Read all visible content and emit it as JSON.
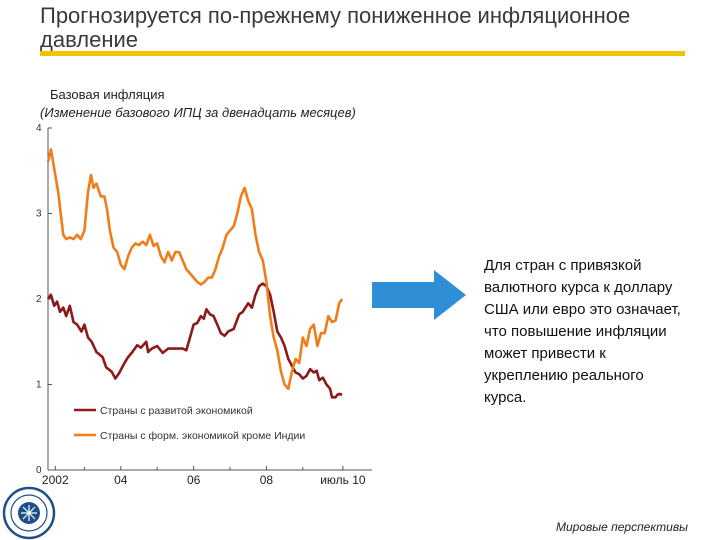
{
  "page": {
    "title": "Прогнозируется по-прежнему пониженное инфляционное давление",
    "note": "Для стран с привязкой валютного курса к доллару США или евро это означает, что повышение инфляции может привести к укреплению реального курса.",
    "source": "Мировые перспективы"
  },
  "colors": {
    "accent": "#f0c400",
    "advanced": "#8b1a1a",
    "emerging": "#f07d1a",
    "arrow": "#2e8fd6"
  },
  "chart_data": {
    "type": "line",
    "title": "Базовая инфляция",
    "subtitle": "(Изменение базового ИПЦ за двенадцать месяцев)",
    "ylim": [
      0,
      4
    ],
    "yticks": [
      "0",
      "1",
      "2",
      "3",
      "4"
    ],
    "xlim": [
      2002.0,
      2010.9
    ],
    "xticks": [
      {
        "label": "2002",
        "x": 2002.2
      },
      {
        "label": "04",
        "x": 2004.0
      },
      {
        "label": "06",
        "x": 2006.0
      },
      {
        "label": "08",
        "x": 2008.0
      },
      {
        "label": "июль 10",
        "x": 2010.1
      }
    ],
    "legend_position": "bottom-left",
    "series": [
      {
        "name": "Страны с развитой экономикой",
        "points": [
          [
            2002.0,
            2.0
          ],
          [
            2002.08,
            2.05
          ],
          [
            2002.17,
            1.92
          ],
          [
            2002.25,
            1.97
          ],
          [
            2002.33,
            1.85
          ],
          [
            2002.42,
            1.9
          ],
          [
            2002.5,
            1.8
          ],
          [
            2002.6,
            1.92
          ],
          [
            2002.7,
            1.73
          ],
          [
            2002.8,
            1.7
          ],
          [
            2002.92,
            1.62
          ],
          [
            2003.0,
            1.7
          ],
          [
            2003.1,
            1.55
          ],
          [
            2003.2,
            1.5
          ],
          [
            2003.33,
            1.38
          ],
          [
            2003.5,
            1.32
          ],
          [
            2003.6,
            1.2
          ],
          [
            2003.75,
            1.15
          ],
          [
            2003.85,
            1.07
          ],
          [
            2003.95,
            1.13
          ],
          [
            2004.1,
            1.25
          ],
          [
            2004.2,
            1.32
          ],
          [
            2004.3,
            1.37
          ],
          [
            2004.45,
            1.46
          ],
          [
            2004.55,
            1.43
          ],
          [
            2004.7,
            1.5
          ],
          [
            2004.75,
            1.38
          ],
          [
            2004.85,
            1.42
          ],
          [
            2005.0,
            1.45
          ],
          [
            2005.15,
            1.37
          ],
          [
            2005.3,
            1.42
          ],
          [
            2005.5,
            1.42
          ],
          [
            2005.7,
            1.42
          ],
          [
            2005.8,
            1.4
          ],
          [
            2005.9,
            1.55
          ],
          [
            2006.0,
            1.7
          ],
          [
            2006.1,
            1.72
          ],
          [
            2006.2,
            1.8
          ],
          [
            2006.28,
            1.77
          ],
          [
            2006.35,
            1.88
          ],
          [
            2006.45,
            1.82
          ],
          [
            2006.55,
            1.8
          ],
          [
            2006.65,
            1.7
          ],
          [
            2006.75,
            1.6
          ],
          [
            2006.85,
            1.57
          ],
          [
            2006.95,
            1.62
          ],
          [
            2007.1,
            1.65
          ],
          [
            2007.25,
            1.82
          ],
          [
            2007.35,
            1.85
          ],
          [
            2007.5,
            1.95
          ],
          [
            2007.6,
            1.9
          ],
          [
            2007.7,
            2.05
          ],
          [
            2007.8,
            2.15
          ],
          [
            2007.9,
            2.18
          ],
          [
            2008.0,
            2.15
          ],
          [
            2008.1,
            2.05
          ],
          [
            2008.2,
            1.85
          ],
          [
            2008.3,
            1.62
          ],
          [
            2008.4,
            1.55
          ],
          [
            2008.5,
            1.45
          ],
          [
            2008.6,
            1.3
          ],
          [
            2008.7,
            1.22
          ],
          [
            2008.8,
            1.14
          ],
          [
            2008.9,
            1.12
          ],
          [
            2009.0,
            1.07
          ],
          [
            2009.1,
            1.1
          ],
          [
            2009.2,
            1.18
          ],
          [
            2009.3,
            1.14
          ],
          [
            2009.38,
            1.16
          ],
          [
            2009.45,
            1.05
          ],
          [
            2009.55,
            1.08
          ],
          [
            2009.65,
            1.0
          ],
          [
            2009.75,
            0.95
          ],
          [
            2009.8,
            0.85
          ],
          [
            2009.9,
            0.85
          ],
          [
            2009.95,
            0.88
          ],
          [
            2010.0,
            0.89
          ],
          [
            2010.08,
            0.88
          ]
        ]
      },
      {
        "name": "Страны с форм. экономикой кроме Индии",
        "points": [
          [
            2002.0,
            3.6
          ],
          [
            2002.08,
            3.75
          ],
          [
            2002.12,
            3.65
          ],
          [
            2002.2,
            3.45
          ],
          [
            2002.28,
            3.25
          ],
          [
            2002.35,
            3.0
          ],
          [
            2002.42,
            2.75
          ],
          [
            2002.5,
            2.7
          ],
          [
            2002.6,
            2.72
          ],
          [
            2002.7,
            2.7
          ],
          [
            2002.8,
            2.75
          ],
          [
            2002.9,
            2.7
          ],
          [
            2003.0,
            2.8
          ],
          [
            2003.1,
            3.25
          ],
          [
            2003.18,
            3.45
          ],
          [
            2003.25,
            3.3
          ],
          [
            2003.33,
            3.35
          ],
          [
            2003.45,
            3.2
          ],
          [
            2003.55,
            3.2
          ],
          [
            2003.62,
            3.05
          ],
          [
            2003.7,
            2.8
          ],
          [
            2003.8,
            2.6
          ],
          [
            2003.9,
            2.55
          ],
          [
            2004.0,
            2.4
          ],
          [
            2004.1,
            2.35
          ],
          [
            2004.2,
            2.5
          ],
          [
            2004.3,
            2.6
          ],
          [
            2004.4,
            2.65
          ],
          [
            2004.5,
            2.63
          ],
          [
            2004.6,
            2.67
          ],
          [
            2004.7,
            2.63
          ],
          [
            2004.8,
            2.75
          ],
          [
            2004.9,
            2.62
          ],
          [
            2005.0,
            2.65
          ],
          [
            2005.1,
            2.5
          ],
          [
            2005.2,
            2.43
          ],
          [
            2005.3,
            2.55
          ],
          [
            2005.4,
            2.45
          ],
          [
            2005.5,
            2.55
          ],
          [
            2005.6,
            2.55
          ],
          [
            2005.7,
            2.45
          ],
          [
            2005.8,
            2.35
          ],
          [
            2005.9,
            2.3
          ],
          [
            2006.0,
            2.25
          ],
          [
            2006.1,
            2.2
          ],
          [
            2006.2,
            2.17
          ],
          [
            2006.3,
            2.2
          ],
          [
            2006.4,
            2.25
          ],
          [
            2006.5,
            2.25
          ],
          [
            2006.6,
            2.35
          ],
          [
            2006.7,
            2.5
          ],
          [
            2006.8,
            2.6
          ],
          [
            2006.9,
            2.75
          ],
          [
            2007.0,
            2.8
          ],
          [
            2007.1,
            2.85
          ],
          [
            2007.2,
            3.0
          ],
          [
            2007.3,
            3.2
          ],
          [
            2007.4,
            3.3
          ],
          [
            2007.5,
            3.15
          ],
          [
            2007.6,
            3.05
          ],
          [
            2007.7,
            2.75
          ],
          [
            2007.8,
            2.55
          ],
          [
            2007.9,
            2.45
          ],
          [
            2008.0,
            2.2
          ],
          [
            2008.1,
            1.8
          ],
          [
            2008.2,
            1.55
          ],
          [
            2008.3,
            1.4
          ],
          [
            2008.4,
            1.15
          ],
          [
            2008.5,
            1.0
          ],
          [
            2008.6,
            0.95
          ],
          [
            2008.7,
            1.15
          ],
          [
            2008.8,
            1.3
          ],
          [
            2008.9,
            1.25
          ],
          [
            2009.0,
            1.55
          ],
          [
            2009.1,
            1.45
          ],
          [
            2009.2,
            1.65
          ],
          [
            2009.3,
            1.7
          ],
          [
            2009.4,
            1.45
          ],
          [
            2009.5,
            1.6
          ],
          [
            2009.6,
            1.6
          ],
          [
            2009.7,
            1.8
          ],
          [
            2009.8,
            1.73
          ],
          [
            2009.9,
            1.75
          ],
          [
            2010.0,
            1.95
          ],
          [
            2010.08,
            2.0
          ]
        ]
      }
    ]
  }
}
